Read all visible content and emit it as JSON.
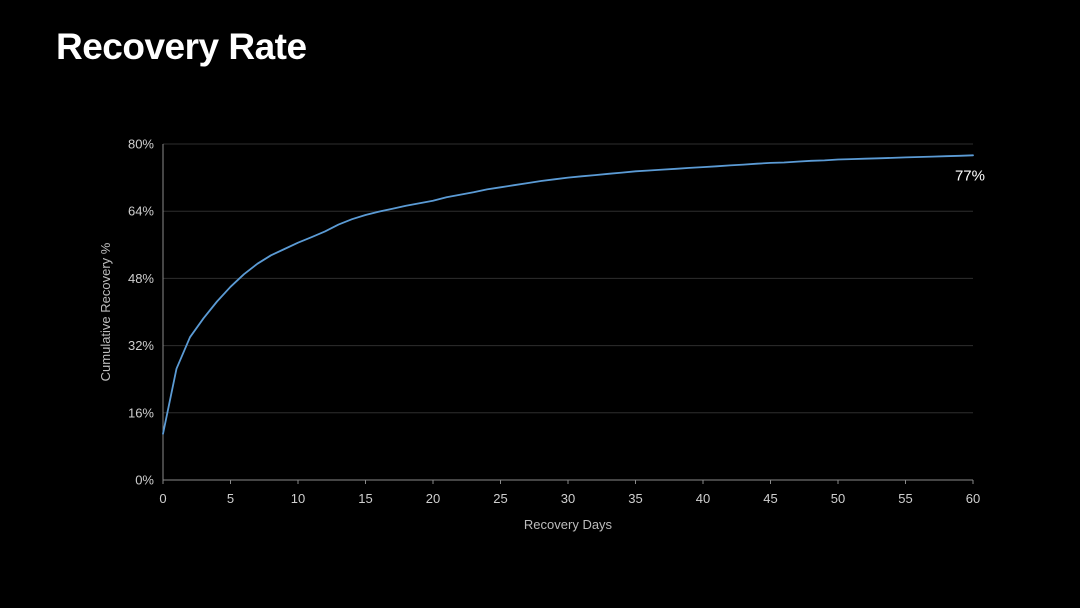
{
  "title": "Recovery Rate",
  "chart_data": {
    "type": "line",
    "title": "Recovery Rate",
    "xlabel": "Recovery Days",
    "ylabel": "Cumulative Recovery %",
    "xlim": [
      0,
      60
    ],
    "ylim": [
      0,
      80
    ],
    "x_ticks": [
      0,
      5,
      10,
      15,
      20,
      25,
      30,
      35,
      40,
      45,
      50,
      55,
      60
    ],
    "y_ticks": [
      0,
      16,
      32,
      48,
      64,
      80
    ],
    "y_tick_labels": [
      "0%",
      "16%",
      "32%",
      "48%",
      "64%",
      "80%"
    ],
    "grid": "horizontal",
    "line_color": "#5b9bd5",
    "series": [
      {
        "name": "",
        "x": [
          0,
          1,
          2,
          3,
          4,
          5,
          6,
          7,
          8,
          9,
          10,
          11,
          12,
          13,
          14,
          15,
          16,
          17,
          18,
          19,
          20,
          21,
          22,
          23,
          24,
          25,
          26,
          27,
          28,
          29,
          30,
          31,
          32,
          33,
          34,
          35,
          36,
          37,
          38,
          39,
          40,
          41,
          42,
          43,
          44,
          45,
          46,
          47,
          48,
          49,
          50,
          51,
          52,
          53,
          54,
          55,
          56,
          57,
          58,
          59,
          60
        ],
        "y": [
          11,
          26.5,
          34,
          38.5,
          42.5,
          46,
          49,
          51.5,
          53.5,
          55,
          56.5,
          57.8,
          59.2,
          60.8,
          62.1,
          63.1,
          63.9,
          64.6,
          65.3,
          65.9,
          66.5,
          67.3,
          67.9,
          68.5,
          69.2,
          69.7,
          70.2,
          70.7,
          71.2,
          71.6,
          72,
          72.3,
          72.6,
          72.9,
          73.2,
          73.5,
          73.7,
          73.9,
          74.1,
          74.3,
          74.5,
          74.7,
          74.9,
          75.1,
          75.3,
          75.5,
          75.6,
          75.8,
          76,
          76.1,
          76.3,
          76.4,
          76.5,
          76.6,
          76.7,
          76.8,
          76.9,
          77,
          77.1,
          77.2,
          77.3
        ]
      }
    ],
    "annotations": [
      {
        "text": "77%",
        "x": 60,
        "y": 77
      }
    ]
  }
}
